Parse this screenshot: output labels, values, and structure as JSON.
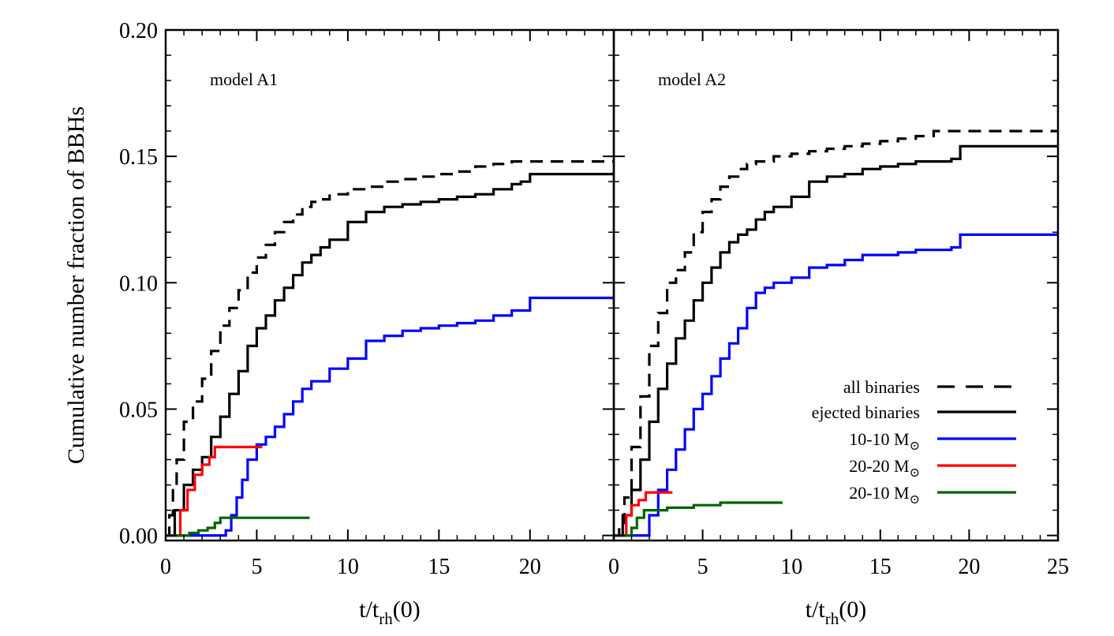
{
  "chart_data": [
    {
      "type": "line",
      "panel_label": "model A1",
      "xlabel": {
        "base": "t/t",
        "sub": "rh",
        "tail": "(0)"
      },
      "ylabel": "Cumulative number fraction of BBHs",
      "xlim": [
        0,
        24.6
      ],
      "ylim": [
        -0.002,
        0.2
      ],
      "x_ticks": [
        0,
        5,
        10,
        15,
        20
      ],
      "y_ticks": [
        0.0,
        0.05,
        0.1,
        0.15,
        0.2
      ],
      "y_tick_labels": [
        "0.00",
        "0.05",
        "0.10",
        "0.15",
        "0.20"
      ],
      "series": [
        {
          "key": "all",
          "color": "#000000",
          "dash": true,
          "points": [
            [
              0,
              0
            ],
            [
              0.2,
              0.008
            ],
            [
              0.4,
              0.02
            ],
            [
              0.6,
              0.03
            ],
            [
              1.0,
              0.045
            ],
            [
              1.5,
              0.053
            ],
            [
              2.0,
              0.062
            ],
            [
              2.5,
              0.073
            ],
            [
              3.0,
              0.083
            ],
            [
              3.5,
              0.09
            ],
            [
              4.0,
              0.097
            ],
            [
              4.5,
              0.104
            ],
            [
              5.0,
              0.11
            ],
            [
              5.5,
              0.115
            ],
            [
              6.0,
              0.12
            ],
            [
              6.5,
              0.124
            ],
            [
              7.0,
              0.127
            ],
            [
              7.5,
              0.13
            ],
            [
              8.0,
              0.132
            ],
            [
              8.5,
              0.133
            ],
            [
              9.0,
              0.135
            ],
            [
              10.0,
              0.137
            ],
            [
              11.0,
              0.138
            ],
            [
              12.0,
              0.14
            ],
            [
              13.0,
              0.141
            ],
            [
              14.0,
              0.142
            ],
            [
              15.0,
              0.143
            ],
            [
              16.0,
              0.144
            ],
            [
              17.0,
              0.146
            ],
            [
              18.0,
              0.147
            ],
            [
              19.0,
              0.148
            ],
            [
              20.0,
              0.148
            ],
            [
              24.6,
              0.148
            ]
          ]
        },
        {
          "key": "ejected",
          "color": "#000000",
          "dash": false,
          "points": [
            [
              0,
              0
            ],
            [
              0.5,
              0.01
            ],
            [
              1.0,
              0.02
            ],
            [
              1.5,
              0.026
            ],
            [
              2.0,
              0.031
            ],
            [
              2.5,
              0.039
            ],
            [
              3.0,
              0.047
            ],
            [
              3.5,
              0.056
            ],
            [
              4.0,
              0.065
            ],
            [
              4.5,
              0.075
            ],
            [
              5.0,
              0.082
            ],
            [
              5.5,
              0.087
            ],
            [
              6.0,
              0.093
            ],
            [
              6.5,
              0.098
            ],
            [
              7.0,
              0.103
            ],
            [
              7.5,
              0.108
            ],
            [
              8.0,
              0.111
            ],
            [
              8.5,
              0.114
            ],
            [
              9.0,
              0.117
            ],
            [
              10.0,
              0.124
            ],
            [
              11.0,
              0.128
            ],
            [
              12.0,
              0.13
            ],
            [
              13.0,
              0.131
            ],
            [
              14.0,
              0.132
            ],
            [
              15.0,
              0.133
            ],
            [
              16.0,
              0.134
            ],
            [
              17.0,
              0.135
            ],
            [
              18.0,
              0.137
            ],
            [
              19.0,
              0.139
            ],
            [
              19.5,
              0.14
            ],
            [
              20.0,
              0.143
            ],
            [
              24.6,
              0.143
            ]
          ]
        },
        {
          "key": "m1010",
          "color": "#0000ff",
          "dash": false,
          "points": [
            [
              0,
              0
            ],
            [
              3.0,
              0
            ],
            [
              3.3,
              0.002
            ],
            [
              3.6,
              0.008
            ],
            [
              3.9,
              0.015
            ],
            [
              4.2,
              0.022
            ],
            [
              4.5,
              0.03
            ],
            [
              5.0,
              0.036
            ],
            [
              5.5,
              0.039
            ],
            [
              6.0,
              0.043
            ],
            [
              6.5,
              0.048
            ],
            [
              7.0,
              0.053
            ],
            [
              7.5,
              0.058
            ],
            [
              8.0,
              0.061
            ],
            [
              9.0,
              0.066
            ],
            [
              10.0,
              0.07
            ],
            [
              11.0,
              0.077
            ],
            [
              12.0,
              0.079
            ],
            [
              13.0,
              0.081
            ],
            [
              14.0,
              0.082
            ],
            [
              15.0,
              0.083
            ],
            [
              16.0,
              0.084
            ],
            [
              17.0,
              0.085
            ],
            [
              18.0,
              0.087
            ],
            [
              19.0,
              0.089
            ],
            [
              20.0,
              0.094
            ],
            [
              24.6,
              0.094
            ]
          ]
        },
        {
          "key": "m2020",
          "color": "#ff0000",
          "dash": false,
          "points": [
            [
              0,
              0
            ],
            [
              0.5,
              0
            ],
            [
              0.8,
              0.01
            ],
            [
              1.2,
              0.018
            ],
            [
              1.6,
              0.024
            ],
            [
              2.0,
              0.028
            ],
            [
              2.4,
              0.031
            ],
            [
              2.7,
              0.035
            ],
            [
              5.3,
              0.035
            ]
          ]
        },
        {
          "key": "m2010",
          "color": "#006400",
          "dash": false,
          "points": [
            [
              0,
              0
            ],
            [
              0.8,
              0
            ],
            [
              1.3,
              0.001
            ],
            [
              1.8,
              0.002
            ],
            [
              2.3,
              0.003
            ],
            [
              2.7,
              0.005
            ],
            [
              3.0,
              0.007
            ],
            [
              7.9,
              0.007
            ]
          ]
        }
      ]
    },
    {
      "type": "line",
      "panel_label": "model A2",
      "xlabel": {
        "base": "t/t",
        "sub": "rh",
        "tail": "(0)"
      },
      "xlim": [
        0,
        25
      ],
      "ylim": [
        -0.002,
        0.2
      ],
      "x_ticks": [
        0,
        5,
        10,
        15,
        20,
        25
      ],
      "series": [
        {
          "key": "all",
          "color": "#000000",
          "dash": true,
          "points": [
            [
              0,
              0
            ],
            [
              0.3,
              0.005
            ],
            [
              0.6,
              0.015
            ],
            [
              1.0,
              0.035
            ],
            [
              1.5,
              0.055
            ],
            [
              2.0,
              0.075
            ],
            [
              2.5,
              0.088
            ],
            [
              3.0,
              0.1
            ],
            [
              3.5,
              0.105
            ],
            [
              4.0,
              0.112
            ],
            [
              4.5,
              0.12
            ],
            [
              5.0,
              0.128
            ],
            [
              5.5,
              0.133
            ],
            [
              6.0,
              0.138
            ],
            [
              6.5,
              0.142
            ],
            [
              7.0,
              0.145
            ],
            [
              7.5,
              0.147
            ],
            [
              8.0,
              0.148
            ],
            [
              9.0,
              0.15
            ],
            [
              10.0,
              0.151
            ],
            [
              11.0,
              0.152
            ],
            [
              12.0,
              0.153
            ],
            [
              13.0,
              0.154
            ],
            [
              14.0,
              0.155
            ],
            [
              15.0,
              0.156
            ],
            [
              16.0,
              0.157
            ],
            [
              17.0,
              0.158
            ],
            [
              18.0,
              0.16
            ],
            [
              19.0,
              0.16
            ],
            [
              20.0,
              0.16
            ],
            [
              25,
              0.16
            ]
          ]
        },
        {
          "key": "ejected",
          "color": "#000000",
          "dash": false,
          "points": [
            [
              0,
              0
            ],
            [
              0.5,
              0.008
            ],
            [
              1.0,
              0.018
            ],
            [
              1.5,
              0.03
            ],
            [
              2.0,
              0.045
            ],
            [
              2.5,
              0.058
            ],
            [
              3.0,
              0.068
            ],
            [
              3.5,
              0.078
            ],
            [
              4.0,
              0.085
            ],
            [
              4.5,
              0.093
            ],
            [
              5.0,
              0.1
            ],
            [
              5.5,
              0.106
            ],
            [
              6.0,
              0.112
            ],
            [
              6.5,
              0.116
            ],
            [
              7.0,
              0.119
            ],
            [
              7.5,
              0.121
            ],
            [
              8.0,
              0.125
            ],
            [
              8.5,
              0.128
            ],
            [
              9.0,
              0.13
            ],
            [
              10.0,
              0.134
            ],
            [
              11.0,
              0.14
            ],
            [
              12.0,
              0.142
            ],
            [
              13.0,
              0.143
            ],
            [
              14.0,
              0.145
            ],
            [
              15.0,
              0.146
            ],
            [
              16.0,
              0.147
            ],
            [
              17.0,
              0.148
            ],
            [
              18.0,
              0.148
            ],
            [
              19.0,
              0.149
            ],
            [
              19.5,
              0.154
            ],
            [
              25,
              0.154
            ]
          ]
        },
        {
          "key": "m1010",
          "color": "#0000ff",
          "dash": false,
          "points": [
            [
              0,
              0
            ],
            [
              1.5,
              0
            ],
            [
              2.0,
              0.008
            ],
            [
              2.5,
              0.018
            ],
            [
              3.0,
              0.026
            ],
            [
              3.5,
              0.034
            ],
            [
              4.0,
              0.042
            ],
            [
              4.5,
              0.05
            ],
            [
              5.0,
              0.056
            ],
            [
              5.5,
              0.063
            ],
            [
              6.0,
              0.07
            ],
            [
              6.5,
              0.076
            ],
            [
              7.0,
              0.082
            ],
            [
              7.5,
              0.09
            ],
            [
              8.0,
              0.096
            ],
            [
              8.5,
              0.098
            ],
            [
              9.0,
              0.1
            ],
            [
              10.0,
              0.102
            ],
            [
              11.0,
              0.106
            ],
            [
              12.0,
              0.107
            ],
            [
              13.0,
              0.109
            ],
            [
              14.0,
              0.111
            ],
            [
              15.0,
              0.111
            ],
            [
              16.0,
              0.112
            ],
            [
              17.0,
              0.113
            ],
            [
              18.0,
              0.113
            ],
            [
              19.0,
              0.114
            ],
            [
              19.5,
              0.119
            ],
            [
              25,
              0.119
            ]
          ]
        },
        {
          "key": "m2020",
          "color": "#ff0000",
          "dash": false,
          "points": [
            [
              0,
              0
            ],
            [
              0.4,
              0
            ],
            [
              0.7,
              0.008
            ],
            [
              1.0,
              0.012
            ],
            [
              1.4,
              0.014
            ],
            [
              1.8,
              0.017
            ],
            [
              3.3,
              0.017
            ]
          ]
        },
        {
          "key": "m2010",
          "color": "#006400",
          "dash": false,
          "points": [
            [
              0,
              0
            ],
            [
              0.7,
              0
            ],
            [
              1.0,
              0.003
            ],
            [
              1.3,
              0.007
            ],
            [
              1.7,
              0.01
            ],
            [
              3.0,
              0.011
            ],
            [
              4.5,
              0.012
            ],
            [
              6.0,
              0.013
            ],
            [
              9.5,
              0.013
            ]
          ]
        }
      ]
    }
  ],
  "legend": {
    "placement": "bottom-right of right panel",
    "entries": [
      {
        "key": "all",
        "label": "all binaries",
        "unit": "",
        "color": "#000000",
        "dash": true
      },
      {
        "key": "ejected",
        "label": "ejected binaries",
        "unit": "",
        "color": "#000000",
        "dash": false
      },
      {
        "key": "m1010",
        "label": "10-10 M",
        "unit": "⊙",
        "color": "#0000ff",
        "dash": false
      },
      {
        "key": "m2020",
        "label": "20-20 M",
        "unit": "⊙",
        "color": "#ff0000",
        "dash": false
      },
      {
        "key": "m2010",
        "label": "20-10 M",
        "unit": "⊙",
        "color": "#006400",
        "dash": false
      }
    ]
  }
}
